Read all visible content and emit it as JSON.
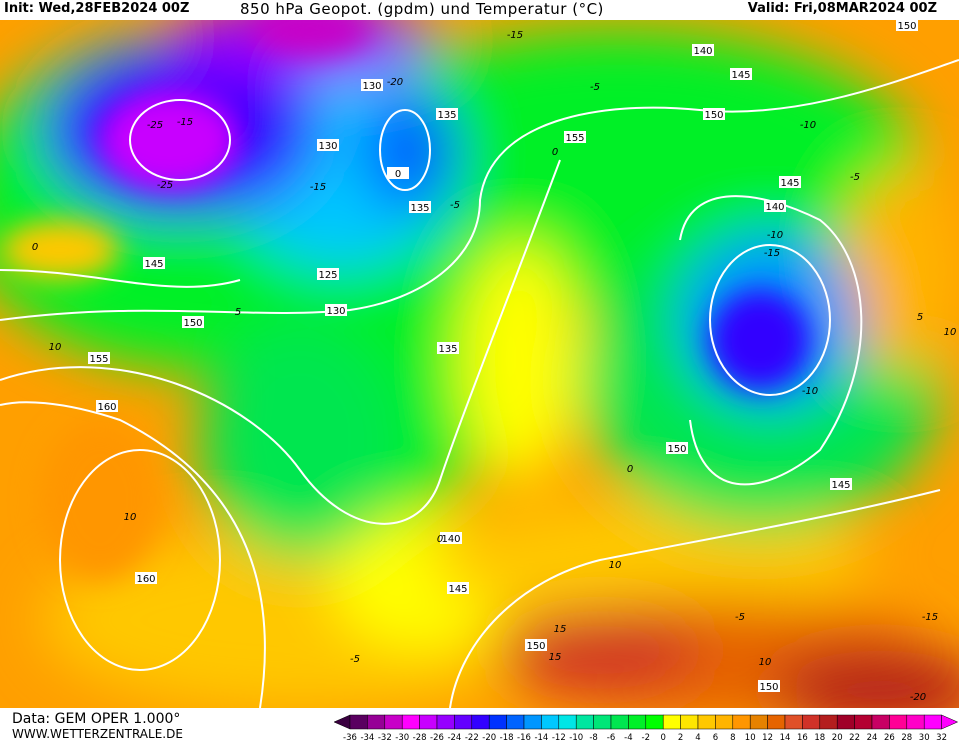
{
  "header": {
    "init": "Init: Wed,28FEB2024 00Z",
    "title": "850 hPa Geopot. (gpdm) und Temperatur (°C)",
    "valid": "Valid: Fri,08MAR2024 00Z"
  },
  "footer": {
    "data_source": "Data: GEM OPER 1.000°",
    "website": "WWW.WETTERZENTRALE.DE"
  },
  "map": {
    "geopotential_labels": [
      "150",
      "140",
      "145",
      "150",
      "130",
      "135",
      "0",
      "155",
      "130",
      "135",
      "145",
      "140",
      "125",
      "130",
      "145",
      "150",
      "155",
      "160",
      "135",
      "150",
      "140",
      "145",
      "160",
      "145",
      "150",
      "150"
    ],
    "temperature_labels": [
      "-15",
      "-5",
      "-25",
      "-25",
      "-20",
      "-15",
      "-5",
      "0",
      "-10",
      "-15",
      "-10",
      "-5",
      "-10",
      "10",
      "5",
      "10",
      "15",
      "-5",
      "10",
      "-15",
      "0",
      "0",
      "10",
      "5",
      "-5",
      "15",
      "-20",
      "-15",
      "10",
      "0"
    ]
  },
  "colorbar": {
    "labels": [
      "-36",
      "-34",
      "-32",
      "-30",
      "-28",
      "-26",
      "-24",
      "-22",
      "-20",
      "-18",
      "-16",
      "-14",
      "-12",
      "-10",
      "-8",
      "-6",
      "-4",
      "-2",
      "0",
      "2",
      "4",
      "6",
      "8",
      "10",
      "12",
      "14",
      "16",
      "18",
      "20",
      "22",
      "24",
      "26",
      "28",
      "30",
      "32"
    ],
    "colors": [
      "#5a0060",
      "#960096",
      "#c800c8",
      "#ff00ff",
      "#c800ff",
      "#9600ff",
      "#6400ff",
      "#3200ff",
      "#0032ff",
      "#0064ff",
      "#0096ff",
      "#00c8ff",
      "#00e6e6",
      "#00e6a0",
      "#00e678",
      "#00e650",
      "#00f028",
      "#00ff00",
      "#ffff00",
      "#ffe600",
      "#ffc800",
      "#ffb400",
      "#ff9600",
      "#e68200",
      "#e66400",
      "#e05028",
      "#d03228",
      "#b41e1e",
      "#a00028",
      "#b40032",
      "#c80064",
      "#ff0096",
      "#ff00c8",
      "#ff00ff"
    ],
    "low_arrow_color": "#3a0040",
    "high_arrow_color": "#ff00ff"
  }
}
